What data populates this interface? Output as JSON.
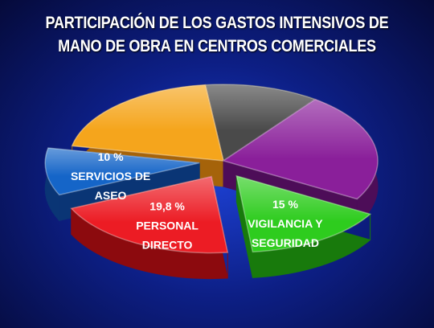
{
  "chart_data": {
    "type": "pie",
    "title_lines": [
      "PARTICIPACIÓN DE LOS GASTOS INTENSIVOS DE",
      "MANO DE OBRA EN CENTROS COMERCIALES"
    ],
    "slices": [
      {
        "value": 15,
        "label_lines": [
          "15 %",
          "VIGILANCIA Y",
          "SEGURIDAD"
        ],
        "color": "#2ecc1e",
        "side": "#187a0c",
        "exploded": true
      },
      {
        "value": 19.8,
        "label_lines": [
          "19,8 %",
          "PERSONAL",
          "DIRECTO"
        ],
        "color": "#ec1c24",
        "side": "#8c0a0e",
        "exploded": true
      },
      {
        "value": 10,
        "label_lines": [
          "10 %",
          "SERVICIOS DE",
          "ASEO"
        ],
        "color": "#1565c8",
        "side": "#0a3575",
        "exploded": true
      },
      {
        "value": 20,
        "label_lines": [],
        "color": "#f5a51c",
        "side": "#a5630a",
        "exploded": false
      },
      {
        "value": 12,
        "label_lines": [],
        "color": "#4a4a4a",
        "side": "#252525",
        "exploded": false
      },
      {
        "value": 23.2,
        "label_lines": [],
        "color": "#8a1f9a",
        "side": "#4d0d58",
        "exploded": false
      }
    ]
  }
}
